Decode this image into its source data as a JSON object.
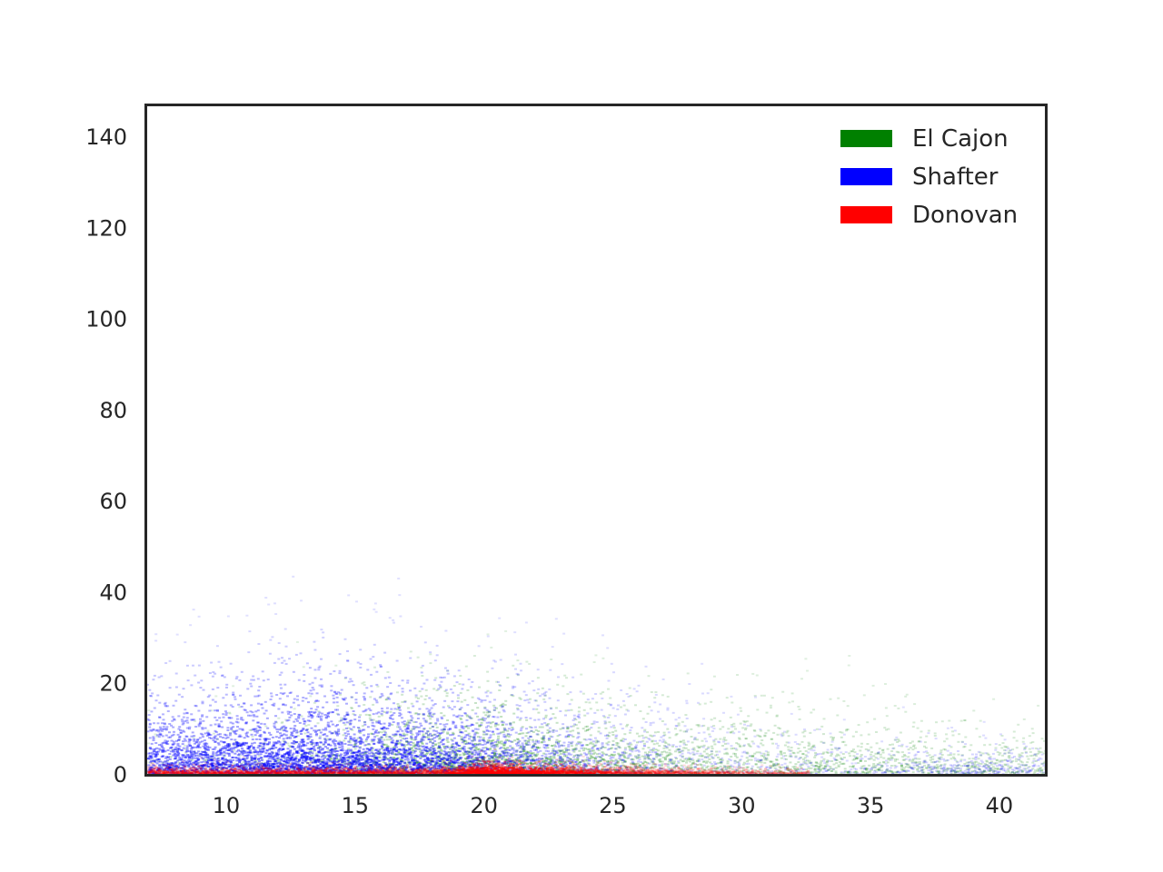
{
  "chart_data": {
    "type": "heatmap",
    "title": "",
    "xlabel": "",
    "ylabel": "",
    "xlim": [
      6.9,
      41.8
    ],
    "ylim": [
      0,
      147
    ],
    "x_ticks": [
      10,
      15,
      20,
      25,
      30,
      35,
      40
    ],
    "y_ticks": [
      0,
      20,
      40,
      60,
      80,
      100,
      120,
      140
    ],
    "grid": false,
    "legend_position": "top-right",
    "series": [
      {
        "name": "El Cajon",
        "color": "#008000",
        "density_profile": [
          {
            "x": 8,
            "y_spread": 6,
            "intensity": 0.05
          },
          {
            "x": 12,
            "y_spread": 8,
            "intensity": 0.1
          },
          {
            "x": 16,
            "y_spread": 10,
            "intensity": 0.25
          },
          {
            "x": 20,
            "y_spread": 10,
            "intensity": 0.35
          },
          {
            "x": 24,
            "y_spread": 9,
            "intensity": 0.25
          },
          {
            "x": 28,
            "y_spread": 9,
            "intensity": 0.18
          },
          {
            "x": 32,
            "y_spread": 8,
            "intensity": 0.16
          },
          {
            "x": 36,
            "y_spread": 7,
            "intensity": 0.14
          },
          {
            "x": 41,
            "y_spread": 6,
            "intensity": 0.12
          }
        ]
      },
      {
        "name": "Shafter",
        "color": "#0000ff",
        "density_profile": [
          {
            "x": 7,
            "y_spread": 10,
            "intensity": 0.5
          },
          {
            "x": 10,
            "y_spread": 11,
            "intensity": 0.55
          },
          {
            "x": 13,
            "y_spread": 12,
            "intensity": 0.6
          },
          {
            "x": 16,
            "y_spread": 12,
            "intensity": 0.55
          },
          {
            "x": 19,
            "y_spread": 11,
            "intensity": 0.45
          },
          {
            "x": 22,
            "y_spread": 10,
            "intensity": 0.3
          },
          {
            "x": 25,
            "y_spread": 10,
            "intensity": 0.18
          },
          {
            "x": 28,
            "y_spread": 9,
            "intensity": 0.1
          },
          {
            "x": 31,
            "y_spread": 7,
            "intensity": 0.07
          },
          {
            "x": 35,
            "y_spread": 5,
            "intensity": 0.06
          },
          {
            "x": 39,
            "y_spread": 4,
            "intensity": 0.12
          },
          {
            "x": 41.5,
            "y_spread": 4,
            "intensity": 0.08
          }
        ]
      },
      {
        "name": "Donovan",
        "color": "#ff0000",
        "density_profile": [
          {
            "x": 18,
            "y_spread": 1,
            "intensity": 0.25
          },
          {
            "x": 20,
            "y_spread": 1.5,
            "intensity": 0.6
          },
          {
            "x": 22,
            "y_spread": 1.2,
            "intensity": 0.45
          },
          {
            "x": 25,
            "y_spread": 1,
            "intensity": 0.25
          },
          {
            "x": 28,
            "y_spread": 0.8,
            "intensity": 0.18
          },
          {
            "x": 31,
            "y_spread": 0.6,
            "intensity": 0.1
          }
        ]
      }
    ]
  }
}
